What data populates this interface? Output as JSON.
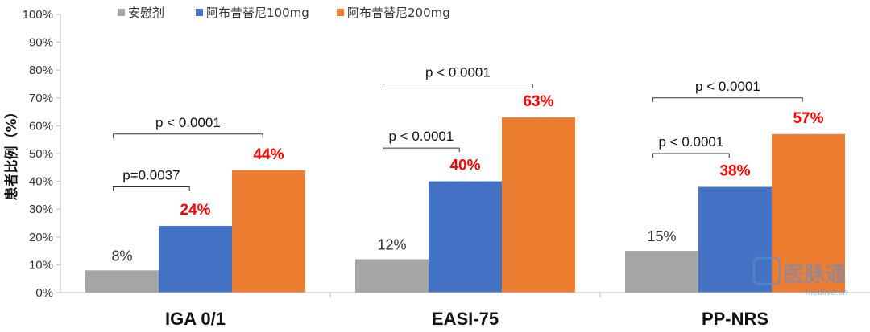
{
  "chart_data": {
    "type": "bar",
    "ylabel": "患者比例（%）",
    "ylim": [
      0,
      100
    ],
    "yticks": [
      "0%",
      "10%",
      "20%",
      "30%",
      "40%",
      "50%",
      "60%",
      "70%",
      "80%",
      "90%",
      "100%"
    ],
    "categories": [
      "IGA 0/1",
      "EASI-75",
      "PP-NRS"
    ],
    "legend_position": "top-left",
    "grid": false,
    "series": [
      {
        "name": "安慰剂",
        "color": "#a6a6a6",
        "values": [
          8,
          12,
          15
        ],
        "labels": [
          "8%",
          "12%",
          "15%"
        ],
        "label_style": "plain"
      },
      {
        "name": "阿布昔替尼100mg",
        "color": "#4472c4",
        "values": [
          24,
          40,
          38
        ],
        "labels": [
          "24%",
          "40%",
          "38%"
        ],
        "label_style": "red"
      },
      {
        "name": "阿布昔替尼200mg",
        "color": "#ed7d31",
        "values": [
          44,
          63,
          57
        ],
        "labels": [
          "44%",
          "63%",
          "57%"
        ],
        "label_style": "red"
      }
    ],
    "annotations": [
      {
        "category": 0,
        "from_series": 0,
        "to_series": 1,
        "text": "p=0.0037",
        "level": 38
      },
      {
        "category": 0,
        "from_series": 0,
        "to_series": 2,
        "text": "p < 0.0001",
        "level": 57
      },
      {
        "category": 1,
        "from_series": 0,
        "to_series": 1,
        "text": "p < 0.0001",
        "level": 52
      },
      {
        "category": 1,
        "from_series": 0,
        "to_series": 2,
        "text": "p < 0.0001",
        "level": 75
      },
      {
        "category": 2,
        "from_series": 0,
        "to_series": 1,
        "text": "p < 0.0001",
        "level": 50
      },
      {
        "category": 2,
        "from_series": 0,
        "to_series": 2,
        "text": "p < 0.0001",
        "level": 70
      }
    ]
  },
  "watermark": {
    "text": "医脉通",
    "url": "medlive.cn"
  }
}
